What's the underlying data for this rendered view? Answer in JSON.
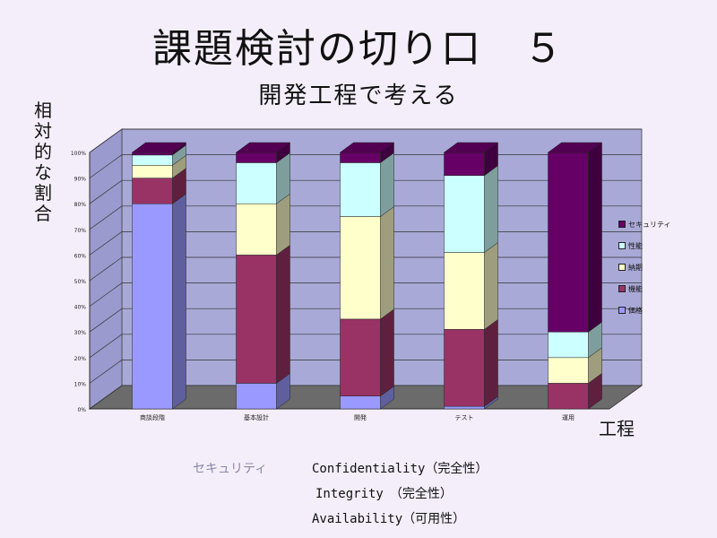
{
  "slide": {
    "title": "課題検討の切り口　５",
    "subtitle": "開発工程で考える"
  },
  "chart_data": {
    "type": "bar",
    "stacked": true,
    "three_d": true,
    "ylabel": "相対的な割合",
    "xlabel": "工程",
    "ylim": [
      0,
      100
    ],
    "y_ticks": [
      "0%",
      "10%",
      "20%",
      "30%",
      "40%",
      "50%",
      "60%",
      "70%",
      "80%",
      "90%",
      "100%"
    ],
    "categories": [
      "商談段階",
      "基本設計",
      "開発",
      "テスト",
      "運用"
    ],
    "legend_position": "right",
    "series": [
      {
        "name": "価格",
        "color": "#9999ff",
        "values": [
          80,
          10,
          5,
          1,
          0
        ]
      },
      {
        "name": "機能",
        "color": "#993366",
        "values": [
          10,
          50,
          30,
          30,
          10
        ]
      },
      {
        "name": "納期",
        "color": "#ffffcc",
        "values": [
          5,
          20,
          40,
          30,
          10
        ]
      },
      {
        "name": "性能",
        "color": "#ccffff",
        "values": [
          4,
          16,
          21,
          30,
          10
        ]
      },
      {
        "name": "セキュリティ",
        "color": "#660066",
        "values": [
          1,
          4,
          4,
          9,
          70
        ]
      }
    ]
  },
  "legend_order": [
    "セキュリティ",
    "性能",
    "納期",
    "機能",
    "価格"
  ],
  "security_notes": {
    "key": "セキュリティ",
    "lines": [
      "Confidentiality（完全性）",
      "Integrity　（完全性）",
      "Availability（可用性）"
    ]
  }
}
